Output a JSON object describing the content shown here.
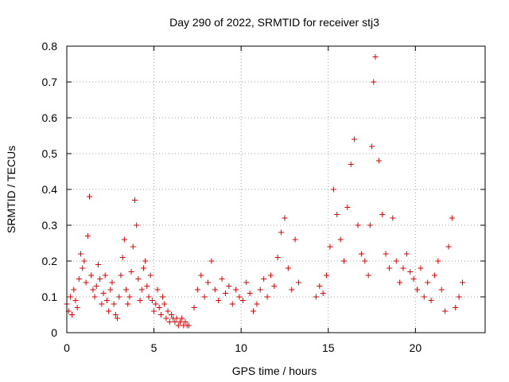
{
  "chart_data": {
    "type": "scatter",
    "title": "Day 290 of 2022, SRMTID for receiver stj3",
    "xlabel": "GPS time / hours",
    "ylabel": "SRMTID / TECUs",
    "xlim": [
      0,
      24
    ],
    "ylim": [
      0,
      0.8
    ],
    "xticks": [
      0,
      5,
      10,
      15,
      20
    ],
    "xtick_labels": [
      "0",
      "5",
      "10",
      "15",
      "20"
    ],
    "yticks": [
      0,
      0.1,
      0.2,
      0.3,
      0.4,
      0.5,
      0.6,
      0.7,
      0.8
    ],
    "ytick_labels": [
      "0",
      "0.1",
      "0.2",
      "0.3",
      "0.4",
      "0.5",
      "0.6",
      "0.7",
      "0.8"
    ],
    "grid": true,
    "marker": "+",
    "color": "#e00000",
    "series": [
      {
        "name": "SRMTID",
        "x": [
          0.0,
          0.1,
          0.2,
          0.3,
          0.4,
          0.5,
          0.6,
          0.7,
          0.8,
          0.9,
          1.0,
          1.1,
          1.2,
          1.3,
          1.4,
          1.5,
          1.6,
          1.7,
          1.8,
          1.9,
          2.0,
          2.1,
          2.2,
          2.3,
          2.4,
          2.5,
          2.6,
          2.7,
          2.8,
          2.9,
          3.0,
          3.1,
          3.2,
          3.3,
          3.4,
          3.5,
          3.6,
          3.7,
          3.8,
          3.9,
          4.0,
          4.1,
          4.2,
          4.3,
          4.4,
          4.5,
          4.6,
          4.7,
          4.8,
          4.9,
          5.0,
          5.1,
          5.2,
          5.3,
          5.4,
          5.5,
          5.6,
          5.7,
          5.8,
          5.9,
          6.0,
          6.1,
          6.2,
          6.3,
          6.4,
          6.5,
          6.6,
          6.7,
          6.8,
          6.9,
          7.0,
          7.3,
          7.5,
          7.7,
          7.9,
          8.1,
          8.3,
          8.5,
          8.7,
          8.9,
          9.1,
          9.3,
          9.5,
          9.7,
          9.9,
          10.1,
          10.3,
          10.5,
          10.7,
          10.9,
          11.1,
          11.3,
          11.5,
          11.7,
          11.9,
          12.1,
          12.3,
          12.5,
          12.7,
          12.9,
          13.1,
          13.3,
          14.3,
          14.5,
          14.7,
          14.9,
          15.1,
          15.3,
          15.5,
          15.7,
          15.9,
          16.1,
          16.3,
          16.5,
          16.7,
          16.9,
          17.1,
          17.3,
          17.4,
          17.5,
          17.6,
          17.7,
          17.9,
          18.1,
          18.3,
          18.5,
          18.7,
          18.9,
          19.1,
          19.3,
          19.5,
          19.7,
          19.9,
          20.1,
          20.3,
          20.5,
          20.7,
          20.9,
          21.1,
          21.3,
          21.5,
          21.7,
          21.9,
          22.1,
          22.3,
          22.5,
          22.7
        ],
        "y": [
          0.08,
          0.06,
          0.1,
          0.05,
          0.12,
          0.09,
          0.07,
          0.15,
          0.22,
          0.18,
          0.2,
          0.14,
          0.27,
          0.38,
          0.16,
          0.12,
          0.1,
          0.13,
          0.19,
          0.15,
          0.08,
          0.11,
          0.16,
          0.09,
          0.06,
          0.12,
          0.14,
          0.08,
          0.05,
          0.04,
          0.1,
          0.16,
          0.21,
          0.26,
          0.12,
          0.08,
          0.1,
          0.17,
          0.24,
          0.37,
          0.3,
          0.15,
          0.09,
          0.12,
          0.18,
          0.2,
          0.13,
          0.1,
          0.16,
          0.09,
          0.06,
          0.08,
          0.12,
          0.07,
          0.05,
          0.1,
          0.08,
          0.04,
          0.06,
          0.03,
          0.05,
          0.04,
          0.03,
          0.04,
          0.02,
          0.03,
          0.04,
          0.02,
          0.03,
          0.02,
          0.02,
          0.07,
          0.12,
          0.16,
          0.1,
          0.14,
          0.2,
          0.12,
          0.09,
          0.15,
          0.11,
          0.13,
          0.08,
          0.12,
          0.1,
          0.09,
          0.14,
          0.11,
          0.06,
          0.08,
          0.12,
          0.15,
          0.1,
          0.16,
          0.13,
          0.21,
          0.28,
          0.32,
          0.18,
          0.12,
          0.26,
          0.14,
          0.1,
          0.13,
          0.11,
          0.16,
          0.24,
          0.4,
          0.33,
          0.26,
          0.2,
          0.35,
          0.47,
          0.54,
          0.3,
          0.22,
          0.2,
          0.16,
          0.3,
          0.52,
          0.7,
          0.77,
          0.48,
          0.33,
          0.22,
          0.18,
          0.32,
          0.2,
          0.14,
          0.18,
          0.22,
          0.17,
          0.15,
          0.12,
          0.18,
          0.1,
          0.14,
          0.09,
          0.16,
          0.2,
          0.12,
          0.06,
          0.24,
          0.32,
          0.07,
          0.1,
          0.14
        ]
      }
    ]
  }
}
